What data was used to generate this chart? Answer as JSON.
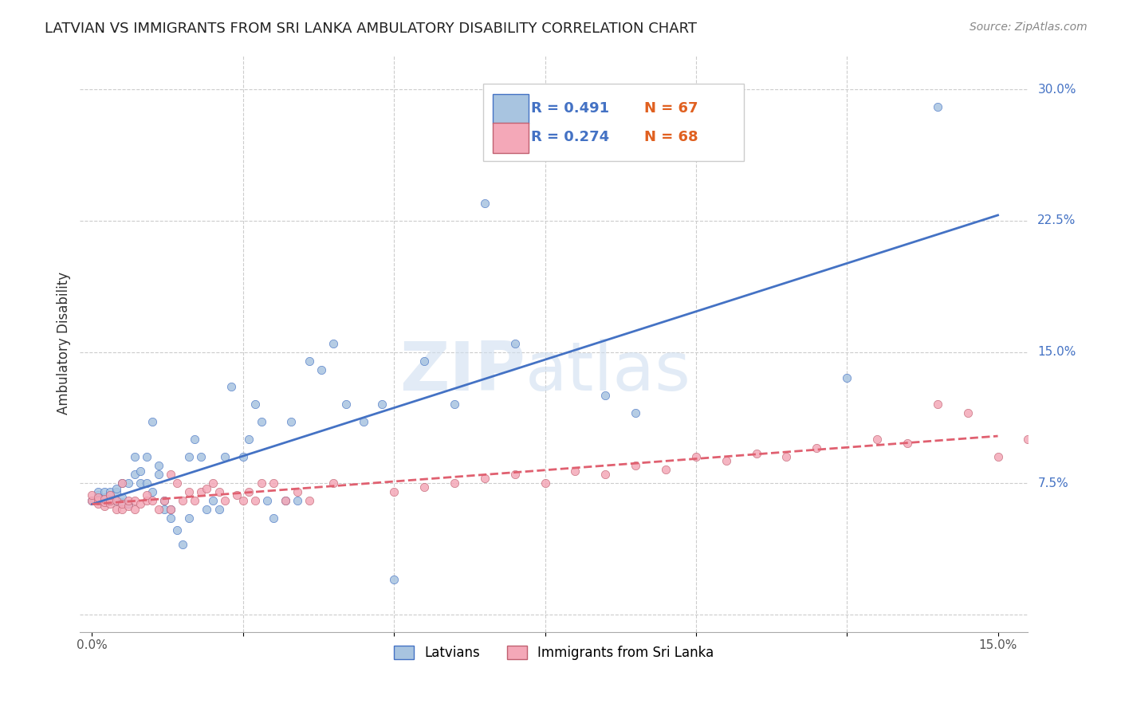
{
  "title": "LATVIAN VS IMMIGRANTS FROM SRI LANKA AMBULATORY DISABILITY CORRELATION CHART",
  "source": "Source: ZipAtlas.com",
  "ylabel": "Ambulatory Disability",
  "xlim": [
    0.0,
    0.15
  ],
  "ylim": [
    -0.01,
    0.32
  ],
  "xticks": [
    0.0,
    0.025,
    0.05,
    0.075,
    0.1,
    0.125,
    0.15
  ],
  "xticklabels": [
    "0.0%",
    "",
    "",
    "",
    "",
    "",
    "15.0%"
  ],
  "ytick_right": [
    0.0,
    0.075,
    0.15,
    0.225,
    0.3
  ],
  "ytick_right_labels": [
    "",
    "7.5%",
    "15.0%",
    "22.5%",
    "30.0%"
  ],
  "legend_R1": "R = 0.491",
  "legend_N1": "N = 67",
  "legend_R2": "R = 0.274",
  "legend_N2": "N = 68",
  "color_latvian": "#a8c4e0",
  "color_srilanka": "#f4a8b8",
  "color_line_latvian": "#4472c4",
  "color_line_srilanka": "#e06070",
  "color_srilanka_edge": "#c06070",
  "watermark": "ZIPatlas",
  "latvian_x": [
    0.0,
    0.001,
    0.001,
    0.002,
    0.002,
    0.002,
    0.003,
    0.003,
    0.003,
    0.003,
    0.004,
    0.004,
    0.004,
    0.005,
    0.005,
    0.005,
    0.006,
    0.006,
    0.007,
    0.007,
    0.008,
    0.008,
    0.009,
    0.009,
    0.01,
    0.01,
    0.011,
    0.011,
    0.012,
    0.012,
    0.013,
    0.013,
    0.014,
    0.015,
    0.016,
    0.016,
    0.017,
    0.018,
    0.019,
    0.02,
    0.021,
    0.022,
    0.023,
    0.025,
    0.026,
    0.027,
    0.028,
    0.029,
    0.03,
    0.032,
    0.033,
    0.034,
    0.036,
    0.038,
    0.04,
    0.042,
    0.045,
    0.048,
    0.05,
    0.055,
    0.06,
    0.065,
    0.07,
    0.085,
    0.09,
    0.125,
    0.14
  ],
  "latvian_y": [
    0.065,
    0.068,
    0.07,
    0.065,
    0.067,
    0.07,
    0.065,
    0.067,
    0.068,
    0.07,
    0.065,
    0.07,
    0.072,
    0.064,
    0.067,
    0.075,
    0.063,
    0.075,
    0.08,
    0.09,
    0.075,
    0.082,
    0.075,
    0.09,
    0.07,
    0.11,
    0.08,
    0.085,
    0.065,
    0.06,
    0.055,
    0.06,
    0.048,
    0.04,
    0.055,
    0.09,
    0.1,
    0.09,
    0.06,
    0.065,
    0.06,
    0.09,
    0.13,
    0.09,
    0.1,
    0.12,
    0.11,
    0.065,
    0.055,
    0.065,
    0.11,
    0.065,
    0.145,
    0.14,
    0.155,
    0.12,
    0.11,
    0.12,
    0.02,
    0.145,
    0.12,
    0.235,
    0.155,
    0.125,
    0.115,
    0.135,
    0.29
  ],
  "srilanka_x": [
    0.0,
    0.0,
    0.001,
    0.001,
    0.001,
    0.002,
    0.002,
    0.002,
    0.003,
    0.003,
    0.003,
    0.004,
    0.004,
    0.005,
    0.005,
    0.005,
    0.006,
    0.006,
    0.007,
    0.007,
    0.008,
    0.009,
    0.009,
    0.01,
    0.011,
    0.012,
    0.013,
    0.013,
    0.014,
    0.015,
    0.016,
    0.017,
    0.018,
    0.019,
    0.02,
    0.021,
    0.022,
    0.024,
    0.025,
    0.026,
    0.027,
    0.028,
    0.03,
    0.032,
    0.034,
    0.036,
    0.04,
    0.05,
    0.055,
    0.06,
    0.065,
    0.07,
    0.075,
    0.08,
    0.085,
    0.09,
    0.095,
    0.1,
    0.105,
    0.11,
    0.115,
    0.12,
    0.13,
    0.135,
    0.14,
    0.145,
    0.15,
    0.155
  ],
  "srilanka_y": [
    0.065,
    0.068,
    0.063,
    0.065,
    0.067,
    0.062,
    0.064,
    0.066,
    0.063,
    0.065,
    0.068,
    0.06,
    0.065,
    0.06,
    0.063,
    0.075,
    0.062,
    0.065,
    0.06,
    0.065,
    0.063,
    0.065,
    0.068,
    0.065,
    0.06,
    0.065,
    0.06,
    0.08,
    0.075,
    0.065,
    0.07,
    0.065,
    0.07,
    0.072,
    0.075,
    0.07,
    0.065,
    0.068,
    0.065,
    0.07,
    0.065,
    0.075,
    0.075,
    0.065,
    0.07,
    0.065,
    0.075,
    0.07,
    0.073,
    0.075,
    0.078,
    0.08,
    0.075,
    0.082,
    0.08,
    0.085,
    0.083,
    0.09,
    0.088,
    0.092,
    0.09,
    0.095,
    0.1,
    0.098,
    0.12,
    0.115,
    0.09,
    0.1
  ],
  "background_color": "#ffffff",
  "grid_color": "#cccccc"
}
